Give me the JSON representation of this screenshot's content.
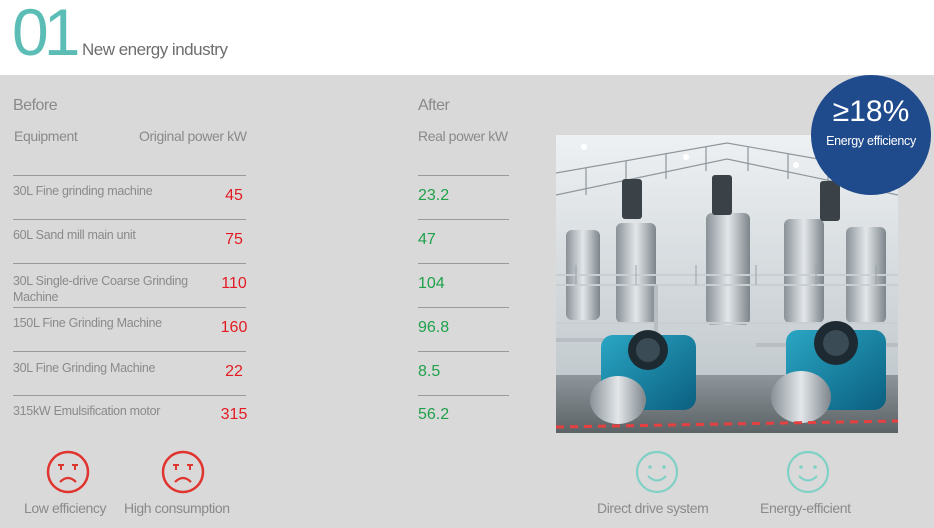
{
  "header": {
    "number": "01",
    "title": "New energy industry"
  },
  "before": {
    "heading": "Before",
    "col_equipment": "Equipment",
    "col_original": "Original power kW"
  },
  "after": {
    "heading": "After",
    "col_real": "Real power kW"
  },
  "rows": [
    {
      "equipment": "30L Fine grinding machine",
      "original": "45",
      "real": "23.2"
    },
    {
      "equipment": "60L Sand mill main unit",
      "original": "75",
      "real": "47"
    },
    {
      "equipment": "30L Single-drive Coarse Grinding Machine",
      "original": "110",
      "real": "104"
    },
    {
      "equipment": "150L Fine Grinding Machine",
      "original": "160",
      "real": "96.8"
    },
    {
      "equipment": "30L Fine Grinding Machine",
      "original": "22",
      "real": "8.5"
    },
    {
      "equipment": "315kW Emulsification motor",
      "original": "315",
      "real": "56.2"
    }
  ],
  "badge": {
    "value": "≥18%",
    "label": "Energy efficiency"
  },
  "icons": [
    {
      "name": "sad-face-icon",
      "label": "Low efficiency"
    },
    {
      "name": "sad-face-icon",
      "label": "High consumption"
    },
    {
      "name": "smile-face-icon",
      "label": "Direct drive system"
    },
    {
      "name": "smile-face-icon",
      "label": "Energy-efficient"
    }
  ],
  "colors": {
    "accent_teal": "#5bbdb5",
    "before_red": "#e31b23",
    "after_green": "#1fa14a",
    "badge_blue": "#1f4a8c",
    "sad_icon": "#e0342e",
    "smile_icon": "#7fd1c6"
  }
}
